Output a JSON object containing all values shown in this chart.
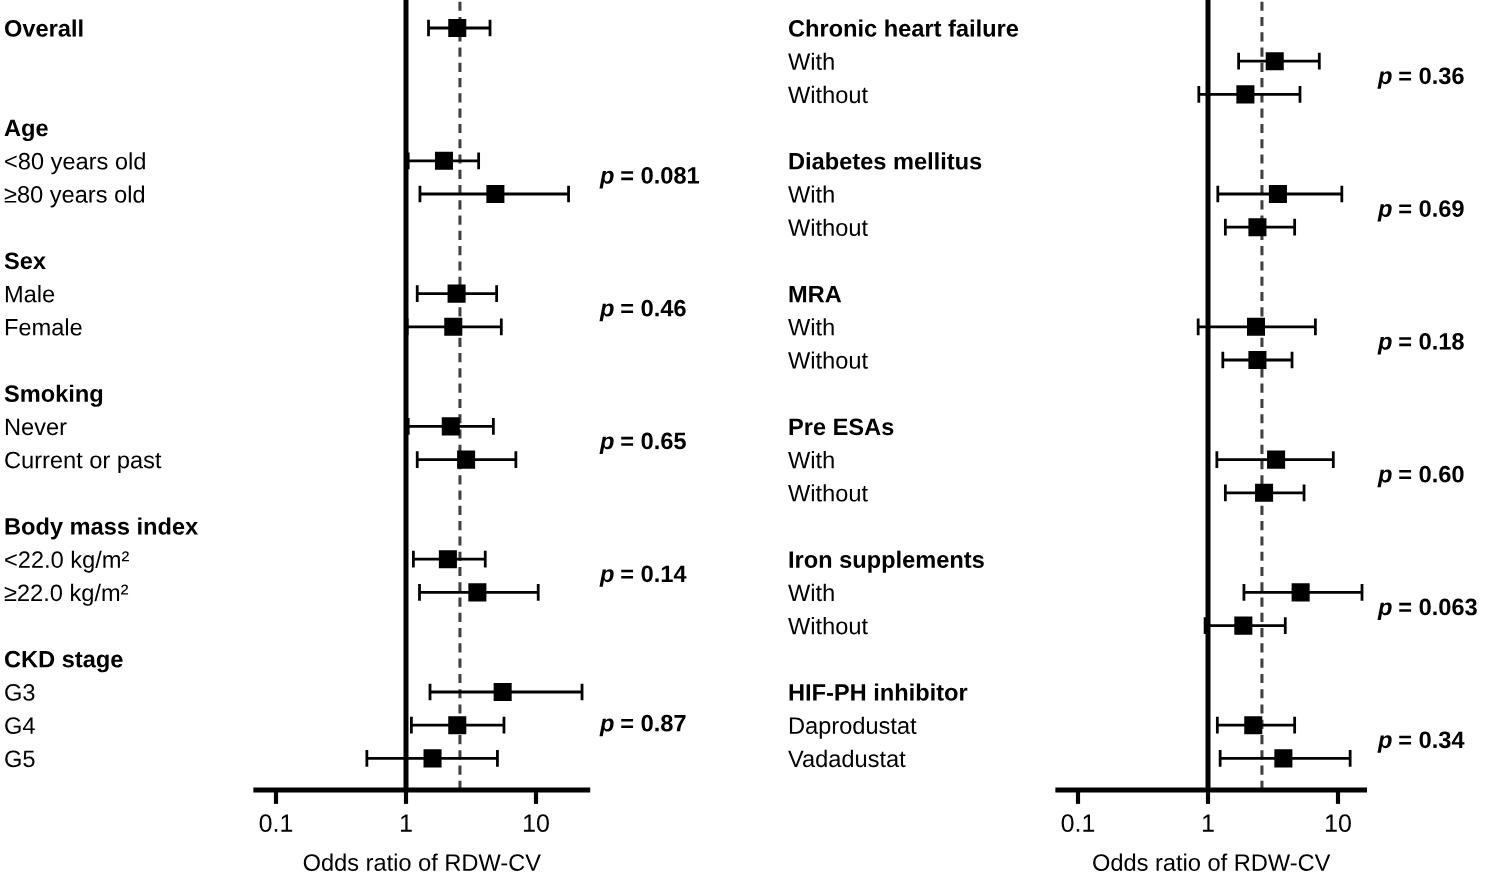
{
  "chart_data": [
    {
      "type": "scatter",
      "xlabel": "Odds ratio of RDW-CV",
      "orientation": "horizontal",
      "log": "x",
      "xlim": [
        0.07,
        25
      ],
      "xticks": [
        0.1,
        1,
        10
      ],
      "grid": false,
      "marker": "square",
      "categories": [
        "Overall",
        null,
        null,
        "Age",
        "<80 years old",
        "≥80 years old",
        null,
        "Sex",
        "Male",
        "Female",
        null,
        "Smoking",
        "Never",
        "Current or past",
        null,
        "Body mass index",
        "<22.0 kg/m²",
        "≥22.0 kg/m²",
        null,
        "CKD stage",
        "G3",
        "G4",
        "G5"
      ],
      "series": [
        {
          "color": "#000000",
          "values": [
            2.48,
            null,
            null,
            null,
            1.96,
            4.87,
            null,
            null,
            2.45,
            2.31,
            null,
            null,
            2.21,
            2.9,
            null,
            null,
            2.1,
            3.54,
            null,
            null,
            5.54,
            2.48,
            1.6
          ],
          "errors": [
            [
              1.49,
              4.43
            ],
            null,
            null,
            null,
            [
              1.04,
              3.62
            ],
            [
              1.28,
              17.8
            ],
            null,
            null,
            [
              1.22,
              4.98
            ],
            [
              1.02,
              5.41
            ],
            null,
            null,
            [
              1.04,
              4.7
            ],
            [
              1.22,
              7.0
            ],
            null,
            null,
            [
              1.14,
              4.07
            ],
            [
              1.27,
              10.4
            ],
            null,
            null,
            [
              1.53,
              22.6
            ],
            [
              1.1,
              5.67
            ],
            [
              0.5,
              5.05
            ]
          ]
        }
      ],
      "ref_lines": [
        {
          "axis": "x",
          "value": 1,
          "color": "#000000",
          "line_style": "solid"
        },
        {
          "axis": "x",
          "value": 2.6,
          "color": "#404040",
          "line_style": "dashed"
        }
      ],
      "annotations": [
        "p = 0.081",
        "p = 0.46",
        "p = 0.65",
        "p = 0.14",
        "p = 0.87"
      ]
    },
    {
      "type": "scatter",
      "xlabel": "Odds ratio of RDW-CV",
      "orientation": "horizontal",
      "log": "x",
      "xlim": [
        0.07,
        16
      ],
      "xticks": [
        0.1,
        1,
        10
      ],
      "grid": false,
      "marker": "square",
      "categories": [
        "Chronic heart failure",
        "With",
        "Without",
        null,
        "Diabetes mellitus",
        "With",
        "Without",
        null,
        "MRA",
        "With",
        "Without",
        null,
        "Pre ESAs",
        "With",
        "Without",
        null,
        "Iron supplements",
        "With",
        "Without",
        null,
        "HIF-PH inhibitor",
        "Daprodustat",
        "Vadadustat"
      ],
      "series": [
        {
          "color": "#000000",
          "values": [
            null,
            3.26,
            1.94,
            null,
            null,
            3.45,
            2.4,
            null,
            null,
            2.34,
            2.4,
            null,
            null,
            3.34,
            2.7,
            null,
            null,
            5.16,
            1.87,
            null,
            null,
            2.23,
            3.8
          ],
          "errors": [
            null,
            [
              1.72,
              7.18
            ],
            [
              0.85,
              5.1
            ],
            null,
            null,
            [
              1.19,
              10.7
            ],
            [
              1.36,
              4.64
            ],
            null,
            null,
            [
              0.84,
              6.7
            ],
            [
              1.3,
              4.43
            ],
            null,
            null,
            [
              1.17,
              9.2
            ],
            [
              1.36,
              5.48
            ],
            null,
            null,
            [
              1.89,
              15.3
            ],
            [
              0.95,
              3.93
            ],
            null,
            null,
            [
              1.18,
              4.64
            ],
            [
              1.24,
              12.4
            ]
          ]
        }
      ],
      "ref_lines": [
        {
          "axis": "x",
          "value": 1,
          "color": "#000000",
          "line_style": "solid"
        },
        {
          "axis": "x",
          "value": 2.6,
          "color": "#404040",
          "line_style": "dashed"
        }
      ],
      "annotations": [
        "p = 0.36",
        "p = 0.69",
        "p = 0.18",
        "p = 0.60",
        "p = 0.063",
        "p = 0.34"
      ]
    }
  ]
}
